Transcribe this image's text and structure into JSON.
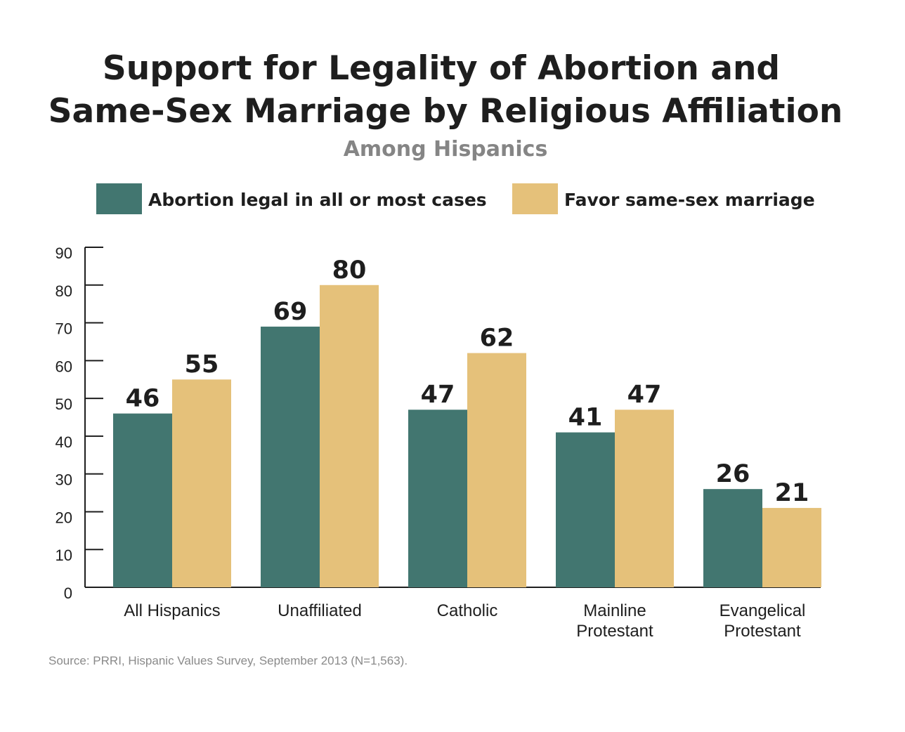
{
  "chart_data": {
    "type": "bar",
    "title_lines": [
      "Support for Legality of Abortion and",
      "Same-Sex Marriage by Religious Affiliation"
    ],
    "subtitle": "Among Hispanics",
    "categories": [
      [
        "All Hispanics"
      ],
      [
        "Unaffiliated"
      ],
      [
        "Catholic"
      ],
      [
        "Mainline",
        "Protestant"
      ],
      [
        "Evangelical",
        "Protestant"
      ]
    ],
    "series": [
      {
        "name": "Abortion legal in all or most cases",
        "color": "#427670",
        "values": [
          46,
          69,
          47,
          41,
          26
        ]
      },
      {
        "name": "Favor same-sex marriage",
        "color": "#e5c17a",
        "values": [
          55,
          80,
          62,
          47,
          21
        ]
      }
    ],
    "yticks": [
      0,
      10,
      20,
      30,
      40,
      50,
      60,
      70,
      80,
      90
    ],
    "ylim": [
      0,
      90
    ],
    "xlabel": "",
    "ylabel": "",
    "grid": false,
    "legend_position": "top",
    "source": "Source: PRRI, Hispanic Values Survey, September 2013 (N=1,563)."
  }
}
